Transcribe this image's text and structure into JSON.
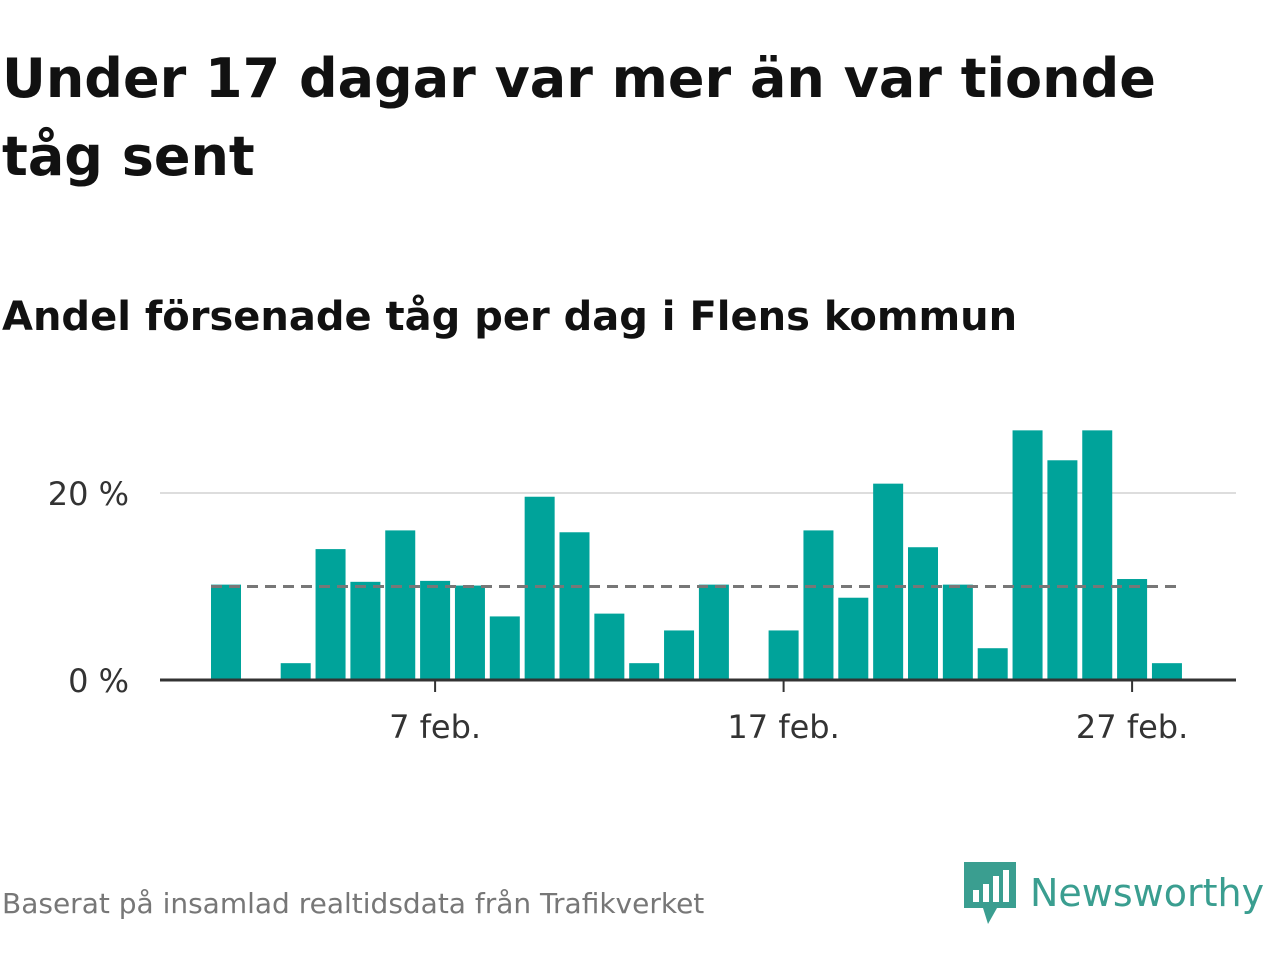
{
  "title": "Under 17 dagar var mer än var tionde tåg sent",
  "subtitle": "Andel försenade tåg per dag i Flens kommun",
  "source": "Baserat på insamlad realtidsdata från Trafikverket",
  "brand": {
    "name": "Newsworthy",
    "icon": "newsworthy-logo-icon",
    "color": "#3a9e90"
  },
  "colors": {
    "bar": "#00a39a",
    "reference_line": "#777777",
    "grid": "#dddddd",
    "axis": "#333333",
    "text": "#111111",
    "source": "#777777"
  },
  "chart_data": {
    "type": "bar",
    "title": "Andel försenade tåg per dag i Flens kommun",
    "x_start_day": 1,
    "month_label": "feb.",
    "days": [
      1,
      2,
      3,
      4,
      5,
      6,
      7,
      8,
      9,
      10,
      11,
      12,
      13,
      14,
      15,
      16,
      17,
      18,
      19,
      20,
      21,
      22,
      23,
      24,
      25,
      26,
      27,
      28
    ],
    "values": [
      10.2,
      0,
      1.8,
      14,
      10.5,
      16,
      10.6,
      10.1,
      6.8,
      19.6,
      15.8,
      7.1,
      1.8,
      5.3,
      10.2,
      0,
      5.3,
      16,
      8.8,
      21,
      14.2,
      10.2,
      3.4,
      26.7,
      23.5,
      26.7,
      10.8,
      1.8
    ],
    "reference_value": 10,
    "ylim": [
      0,
      28
    ],
    "yticks": [
      0,
      20
    ],
    "ytick_labels": [
      "0 %",
      "20 %"
    ],
    "xticks": [
      7,
      17,
      27
    ],
    "xtick_labels": [
      "7 feb.",
      "17 feb.",
      "27 feb."
    ],
    "grid": true,
    "legend": "none"
  }
}
